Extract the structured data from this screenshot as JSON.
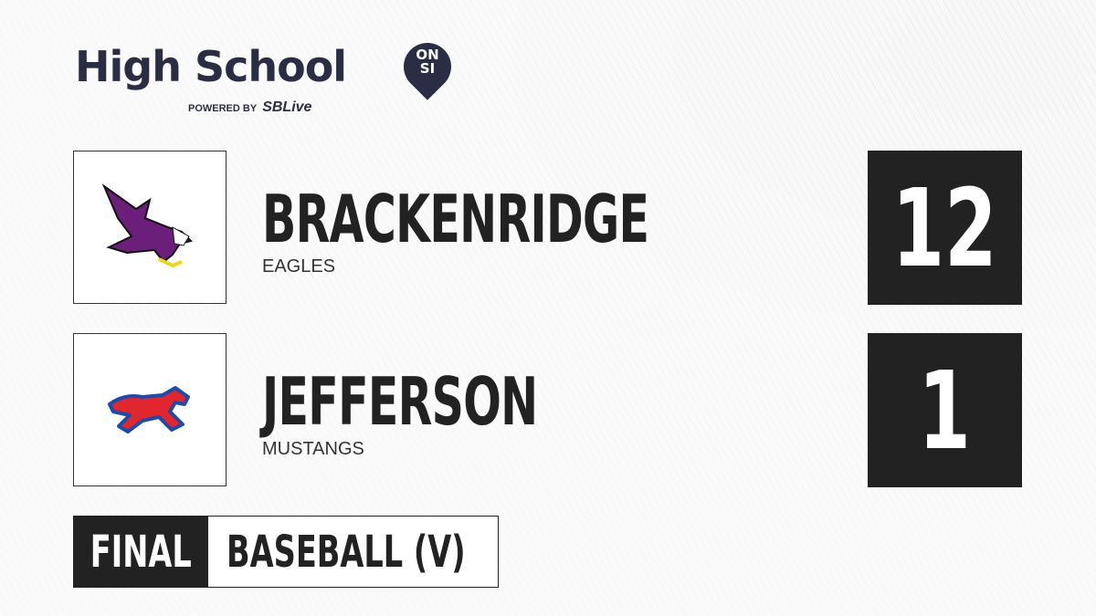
{
  "brand": {
    "title": "High School",
    "badge_line1": "ON",
    "badge_line2": "SI",
    "powered_by": "POWERED BY",
    "partner": "SBLive"
  },
  "teams": [
    {
      "name": "BRACKENRIDGE",
      "mascot": "EAGLES",
      "score": "12",
      "logo_icon": "eagle-logo",
      "logo_color": "#6b1e7a"
    },
    {
      "name": "JEFFERSON",
      "mascot": "MUSTANGS",
      "score": "1",
      "logo_icon": "mustang-logo",
      "logo_color": "#e0262f"
    }
  ],
  "status": {
    "label": "FINAL",
    "sport": "BASEBALL (V)"
  },
  "colors": {
    "brand": "#2a2d44",
    "dark": "#222222",
    "accent": "#29a8e0"
  }
}
